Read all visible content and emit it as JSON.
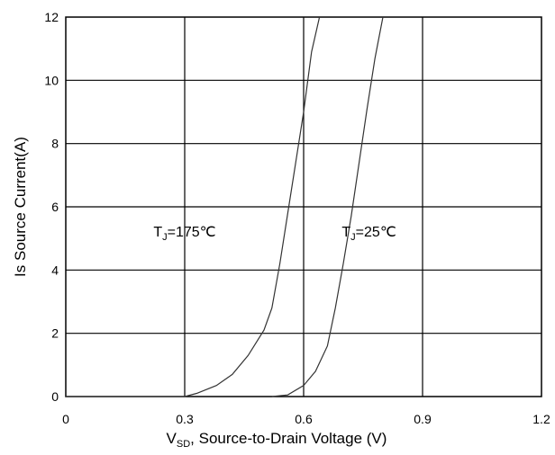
{
  "chart_data": {
    "type": "line",
    "xlabel_main": "V",
    "xlabel_sub": "SD",
    "xlabel_rest": ", Source-to-Drain Voltage (V)",
    "ylabel": "Is Source Current(A)",
    "xlim": [
      0,
      1.2
    ],
    "ylim": [
      0,
      12
    ],
    "x_ticks": [
      0,
      0.3,
      0.6,
      0.9,
      1.2
    ],
    "x_tick_labels": [
      "0",
      "0.3",
      "0.6",
      "0.9",
      "1.2"
    ],
    "y_ticks": [
      0,
      2,
      4,
      6,
      8,
      10,
      12
    ],
    "y_tick_labels": [
      "0",
      "2",
      "4",
      "6",
      "8",
      "10",
      "12"
    ],
    "grid": true,
    "series": [
      {
        "x": [
          0.0,
          0.3,
          0.33,
          0.38,
          0.42,
          0.46,
          0.5,
          0.52,
          0.54,
          0.56,
          0.58,
          0.6,
          0.62,
          0.64
        ],
        "y": [
          0.0,
          0.0,
          0.1,
          0.35,
          0.7,
          1.3,
          2.1,
          2.8,
          4.2,
          5.8,
          7.4,
          9.0,
          10.9,
          12.0
        ]
      },
      {
        "x": [
          0.52,
          0.56,
          0.6,
          0.63,
          0.66,
          0.68,
          0.7,
          0.72,
          0.74,
          0.76,
          0.78,
          0.8
        ],
        "y": [
          0.0,
          0.05,
          0.35,
          0.8,
          1.6,
          2.8,
          4.2,
          5.7,
          7.4,
          9.1,
          10.7,
          12.0
        ]
      }
    ],
    "annotations": [
      {
        "main": "T",
        "sub": "J",
        "rest": "=175℃",
        "x": 0.3,
        "y": 5.0
      },
      {
        "main": "T",
        "sub": "J",
        "rest": "=25℃",
        "x": 0.765,
        "y": 5.0
      }
    ]
  }
}
